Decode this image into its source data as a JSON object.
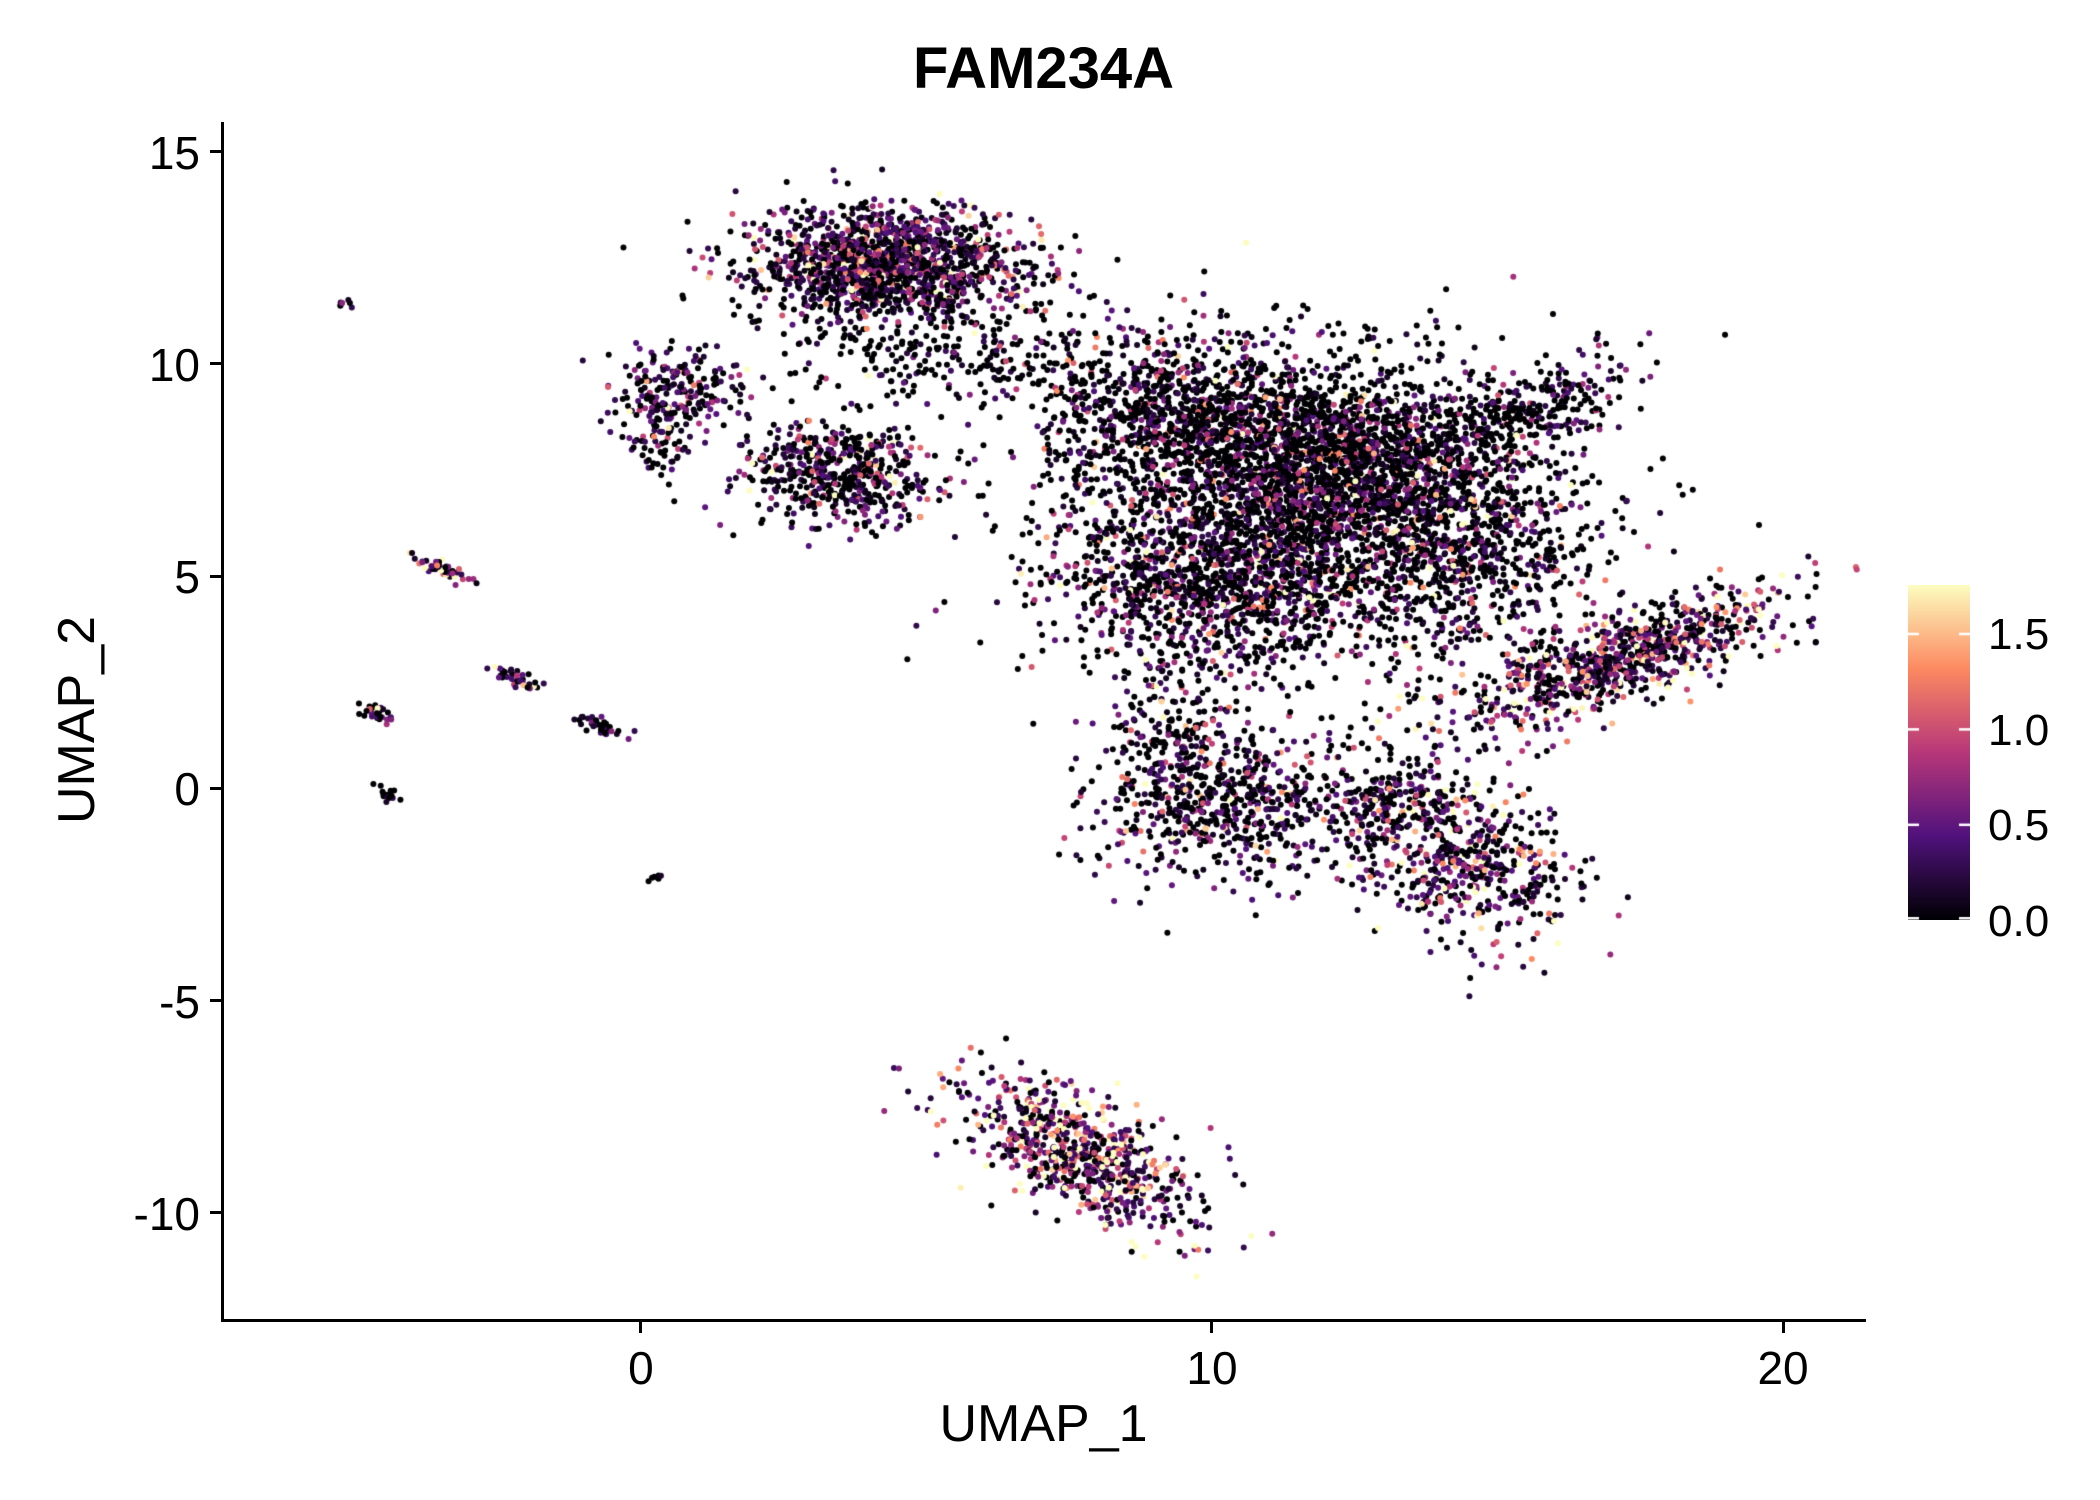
{
  "chart_data": {
    "type": "scatter",
    "title": "FAM234A",
    "xlabel": "UMAP_1",
    "ylabel": "UMAP_2",
    "xlim": [
      -7.3,
      21.4
    ],
    "ylim": [
      -12.5,
      15.7
    ],
    "x_ticks": [
      {
        "v": 0,
        "label": "0"
      },
      {
        "v": 10,
        "label": "10"
      },
      {
        "v": 20,
        "label": "20"
      }
    ],
    "y_ticks": [
      {
        "v": 15,
        "label": "15"
      },
      {
        "v": 10,
        "label": "10"
      },
      {
        "v": 5,
        "label": "5"
      },
      {
        "v": 0,
        "label": "0"
      },
      {
        "v": -5,
        "label": "-5"
      },
      {
        "v": -10,
        "label": "-10"
      }
    ],
    "grid": false,
    "background": "#ffffff",
    "axis_color": "#000000",
    "legend": {
      "type": "colorbar",
      "position": "right",
      "vmin": 0.0,
      "vmax": 1.75,
      "ticks": [
        {
          "v": 1.5,
          "label": "1.5"
        },
        {
          "v": 1.0,
          "label": "1.0"
        },
        {
          "v": 0.5,
          "label": "0.5"
        },
        {
          "v": 0.0,
          "label": "0.0"
        }
      ],
      "tick_color": "#ffffff"
    },
    "colormap": {
      "name": "magma",
      "stops": [
        {
          "t": 0.0,
          "color": "#000004"
        },
        {
          "t": 0.25,
          "color": "#51127c"
        },
        {
          "t": 0.5,
          "color": "#b73779"
        },
        {
          "t": 0.75,
          "color": "#fc8961"
        },
        {
          "t": 1.0,
          "color": "#fcfdbf"
        }
      ]
    },
    "point_radius_px": 3,
    "seed": 7,
    "clusters": [
      {
        "name": "top-core",
        "cx": 4.3,
        "cy": 12.4,
        "sx": 1.05,
        "sy": 0.62,
        "slope": 0,
        "n": 1300,
        "p0": 0.32,
        "mean": 0.55
      },
      {
        "name": "top-halo",
        "cx": 4.6,
        "cy": 11.2,
        "sx": 1.6,
        "sy": 1.1,
        "slope": 0,
        "n": 350,
        "p0": 0.7,
        "mean": 0.35
      },
      {
        "name": "left-upper",
        "cx": 0.65,
        "cy": 9.4,
        "sx": 0.6,
        "sy": 0.45,
        "slope": 0,
        "n": 200,
        "p0": 0.45,
        "mean": 0.5
      },
      {
        "name": "left-upper-hook",
        "cx": 0.35,
        "cy": 8.2,
        "sx": 0.35,
        "sy": 0.45,
        "slope": 0,
        "n": 70,
        "p0": 0.5,
        "mean": 0.45
      },
      {
        "name": "mid-blob",
        "cx": 3.45,
        "cy": 7.5,
        "sx": 0.8,
        "sy": 0.62,
        "slope": 0,
        "n": 520,
        "p0": 0.45,
        "mean": 0.5
      },
      {
        "name": "bridge-top",
        "cx": 6.8,
        "cy": 10.1,
        "sx": 1.3,
        "sy": 0.4,
        "slope": -0.15,
        "n": 130,
        "p0": 0.75,
        "mean": 0.3
      },
      {
        "name": "main-upper-left",
        "cx": 9.4,
        "cy": 8.8,
        "sx": 1.2,
        "sy": 0.95,
        "slope": 0,
        "n": 900,
        "p0": 0.55,
        "mean": 0.45
      },
      {
        "name": "main-upper-right",
        "cx": 12.2,
        "cy": 7.6,
        "sx": 1.5,
        "sy": 1.15,
        "slope": 0,
        "n": 1900,
        "p0": 0.62,
        "mean": 0.5
      },
      {
        "name": "main-lower-left",
        "cx": 10.2,
        "cy": 5.0,
        "sx": 1.45,
        "sy": 1.1,
        "slope": 0,
        "n": 1300,
        "p0": 0.5,
        "mean": 0.5
      },
      {
        "name": "main-right",
        "cx": 14.3,
        "cy": 5.9,
        "sx": 1.25,
        "sy": 1.35,
        "slope": 0,
        "n": 800,
        "p0": 0.55,
        "mean": 0.5
      },
      {
        "name": "main-halo",
        "cx": 11.5,
        "cy": 6.3,
        "sx": 2.7,
        "sy": 2.3,
        "slope": 0,
        "n": 700,
        "p0": 0.75,
        "mean": 0.35
      },
      {
        "name": "arm-top-right",
        "cx": 15.5,
        "cy": 8.9,
        "sx": 0.9,
        "sy": 0.5,
        "slope": 0.35,
        "n": 260,
        "p0": 0.6,
        "mean": 0.45
      },
      {
        "name": "right-arm",
        "cx": 17.1,
        "cy": 3.0,
        "sx": 1.5,
        "sy": 0.5,
        "slope": 0.42,
        "n": 850,
        "p0": 0.3,
        "mean": 0.65
      },
      {
        "name": "below-main",
        "cx": 10.3,
        "cy": -0.4,
        "sx": 1.25,
        "sy": 0.85,
        "slope": 0,
        "n": 650,
        "p0": 0.45,
        "mean": 0.5
      },
      {
        "name": "below-bridge",
        "cx": 9.3,
        "cy": 1.4,
        "sx": 0.5,
        "sy": 0.9,
        "slope": 0,
        "n": 150,
        "p0": 0.55,
        "mean": 0.4
      },
      {
        "name": "lower-right",
        "cx": 14.4,
        "cy": -1.7,
        "sx": 0.95,
        "sy": 0.95,
        "slope": -0.3,
        "n": 550,
        "p0": 0.35,
        "mean": 0.6
      },
      {
        "name": "lower-right-tail",
        "cx": 13.2,
        "cy": -0.3,
        "sx": 0.7,
        "sy": 0.5,
        "slope": 0,
        "n": 150,
        "p0": 0.5,
        "mean": 0.5
      },
      {
        "name": "bottom-triangle",
        "cx": 7.7,
        "cy": -8.6,
        "sx": 1.05,
        "sy": 0.7,
        "slope": -0.5,
        "n": 750,
        "p0": 0.22,
        "mean": 0.8
      },
      {
        "name": "streak-far-top",
        "cx": -5.2,
        "cy": 11.4,
        "sx": 0.12,
        "sy": 0.08,
        "slope": -0.5,
        "n": 8,
        "p0": 0.2,
        "mean": 0.5
      },
      {
        "name": "streak-5",
        "cx": -3.45,
        "cy": 5.15,
        "sx": 0.25,
        "sy": 0.1,
        "slope": -0.45,
        "n": 45,
        "p0": 0.15,
        "mean": 0.85
      },
      {
        "name": "streak-2-5",
        "cx": -2.2,
        "cy": 2.6,
        "sx": 0.2,
        "sy": 0.1,
        "slope": -0.45,
        "n": 35,
        "p0": 0.3,
        "mean": 0.6
      },
      {
        "name": "streak-1-8",
        "cx": -4.65,
        "cy": 1.8,
        "sx": 0.18,
        "sy": 0.1,
        "slope": -0.45,
        "n": 28,
        "p0": 0.35,
        "mean": 0.5
      },
      {
        "name": "streak-1-5",
        "cx": -0.75,
        "cy": 1.5,
        "sx": 0.22,
        "sy": 0.1,
        "slope": -0.35,
        "n": 35,
        "p0": 0.6,
        "mean": 0.25
      },
      {
        "name": "dot-left-zero",
        "cx": -4.45,
        "cy": -0.1,
        "sx": 0.12,
        "sy": 0.08,
        "slope": -0.4,
        "n": 16,
        "p0": 0.8,
        "mean": 0.15
      },
      {
        "name": "dot-minus-2",
        "cx": 0.3,
        "cy": -2.1,
        "sx": 0.07,
        "sy": 0.06,
        "slope": 0,
        "n": 7,
        "p0": 0.85,
        "mean": 0.1
      }
    ]
  }
}
